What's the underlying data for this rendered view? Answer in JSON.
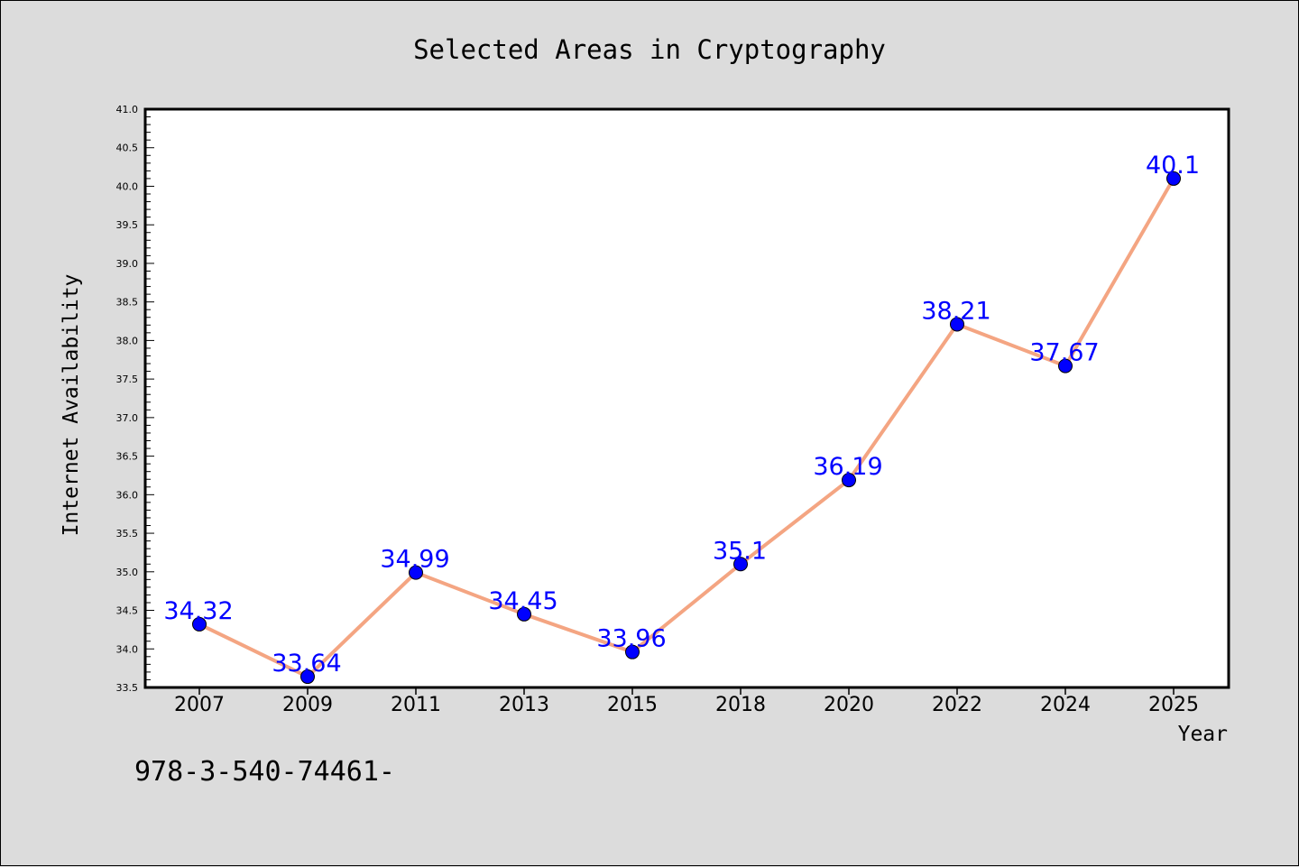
{
  "chart_data": {
    "type": "line",
    "title": "Selected Areas in Cryptography",
    "xlabel": "Year",
    "ylabel": "Internet Availability",
    "categories": [
      "2007",
      "2009",
      "2011",
      "2013",
      "2015",
      "2018",
      "2020",
      "2022",
      "2024",
      "2025"
    ],
    "values": [
      34.32,
      33.64,
      34.99,
      34.45,
      33.96,
      35.1,
      36.19,
      38.21,
      37.67,
      40.1
    ],
    "value_labels": [
      "34.32",
      "33.64",
      "34.99",
      "34.45",
      "33.96",
      "35.1",
      "36.19",
      "38.21",
      "37.67",
      "40.1"
    ],
    "ylim": [
      33.5,
      41.0
    ],
    "yticks": [
      "33.5",
      "34.0",
      "34.5",
      "35.0",
      "35.5",
      "36.0",
      "36.5",
      "37.0",
      "37.5",
      "38.0",
      "38.5",
      "39.0",
      "39.5",
      "40.0",
      "40.5",
      "41.0"
    ],
    "grid": false,
    "legend": "none",
    "colors": {
      "line": "#f4a582",
      "marker": "#0000ff",
      "data_label": "#0000ff",
      "background": "#dcdcdc",
      "plot_background": "#ffffff"
    },
    "annotation": "978-3-540-74461-"
  }
}
